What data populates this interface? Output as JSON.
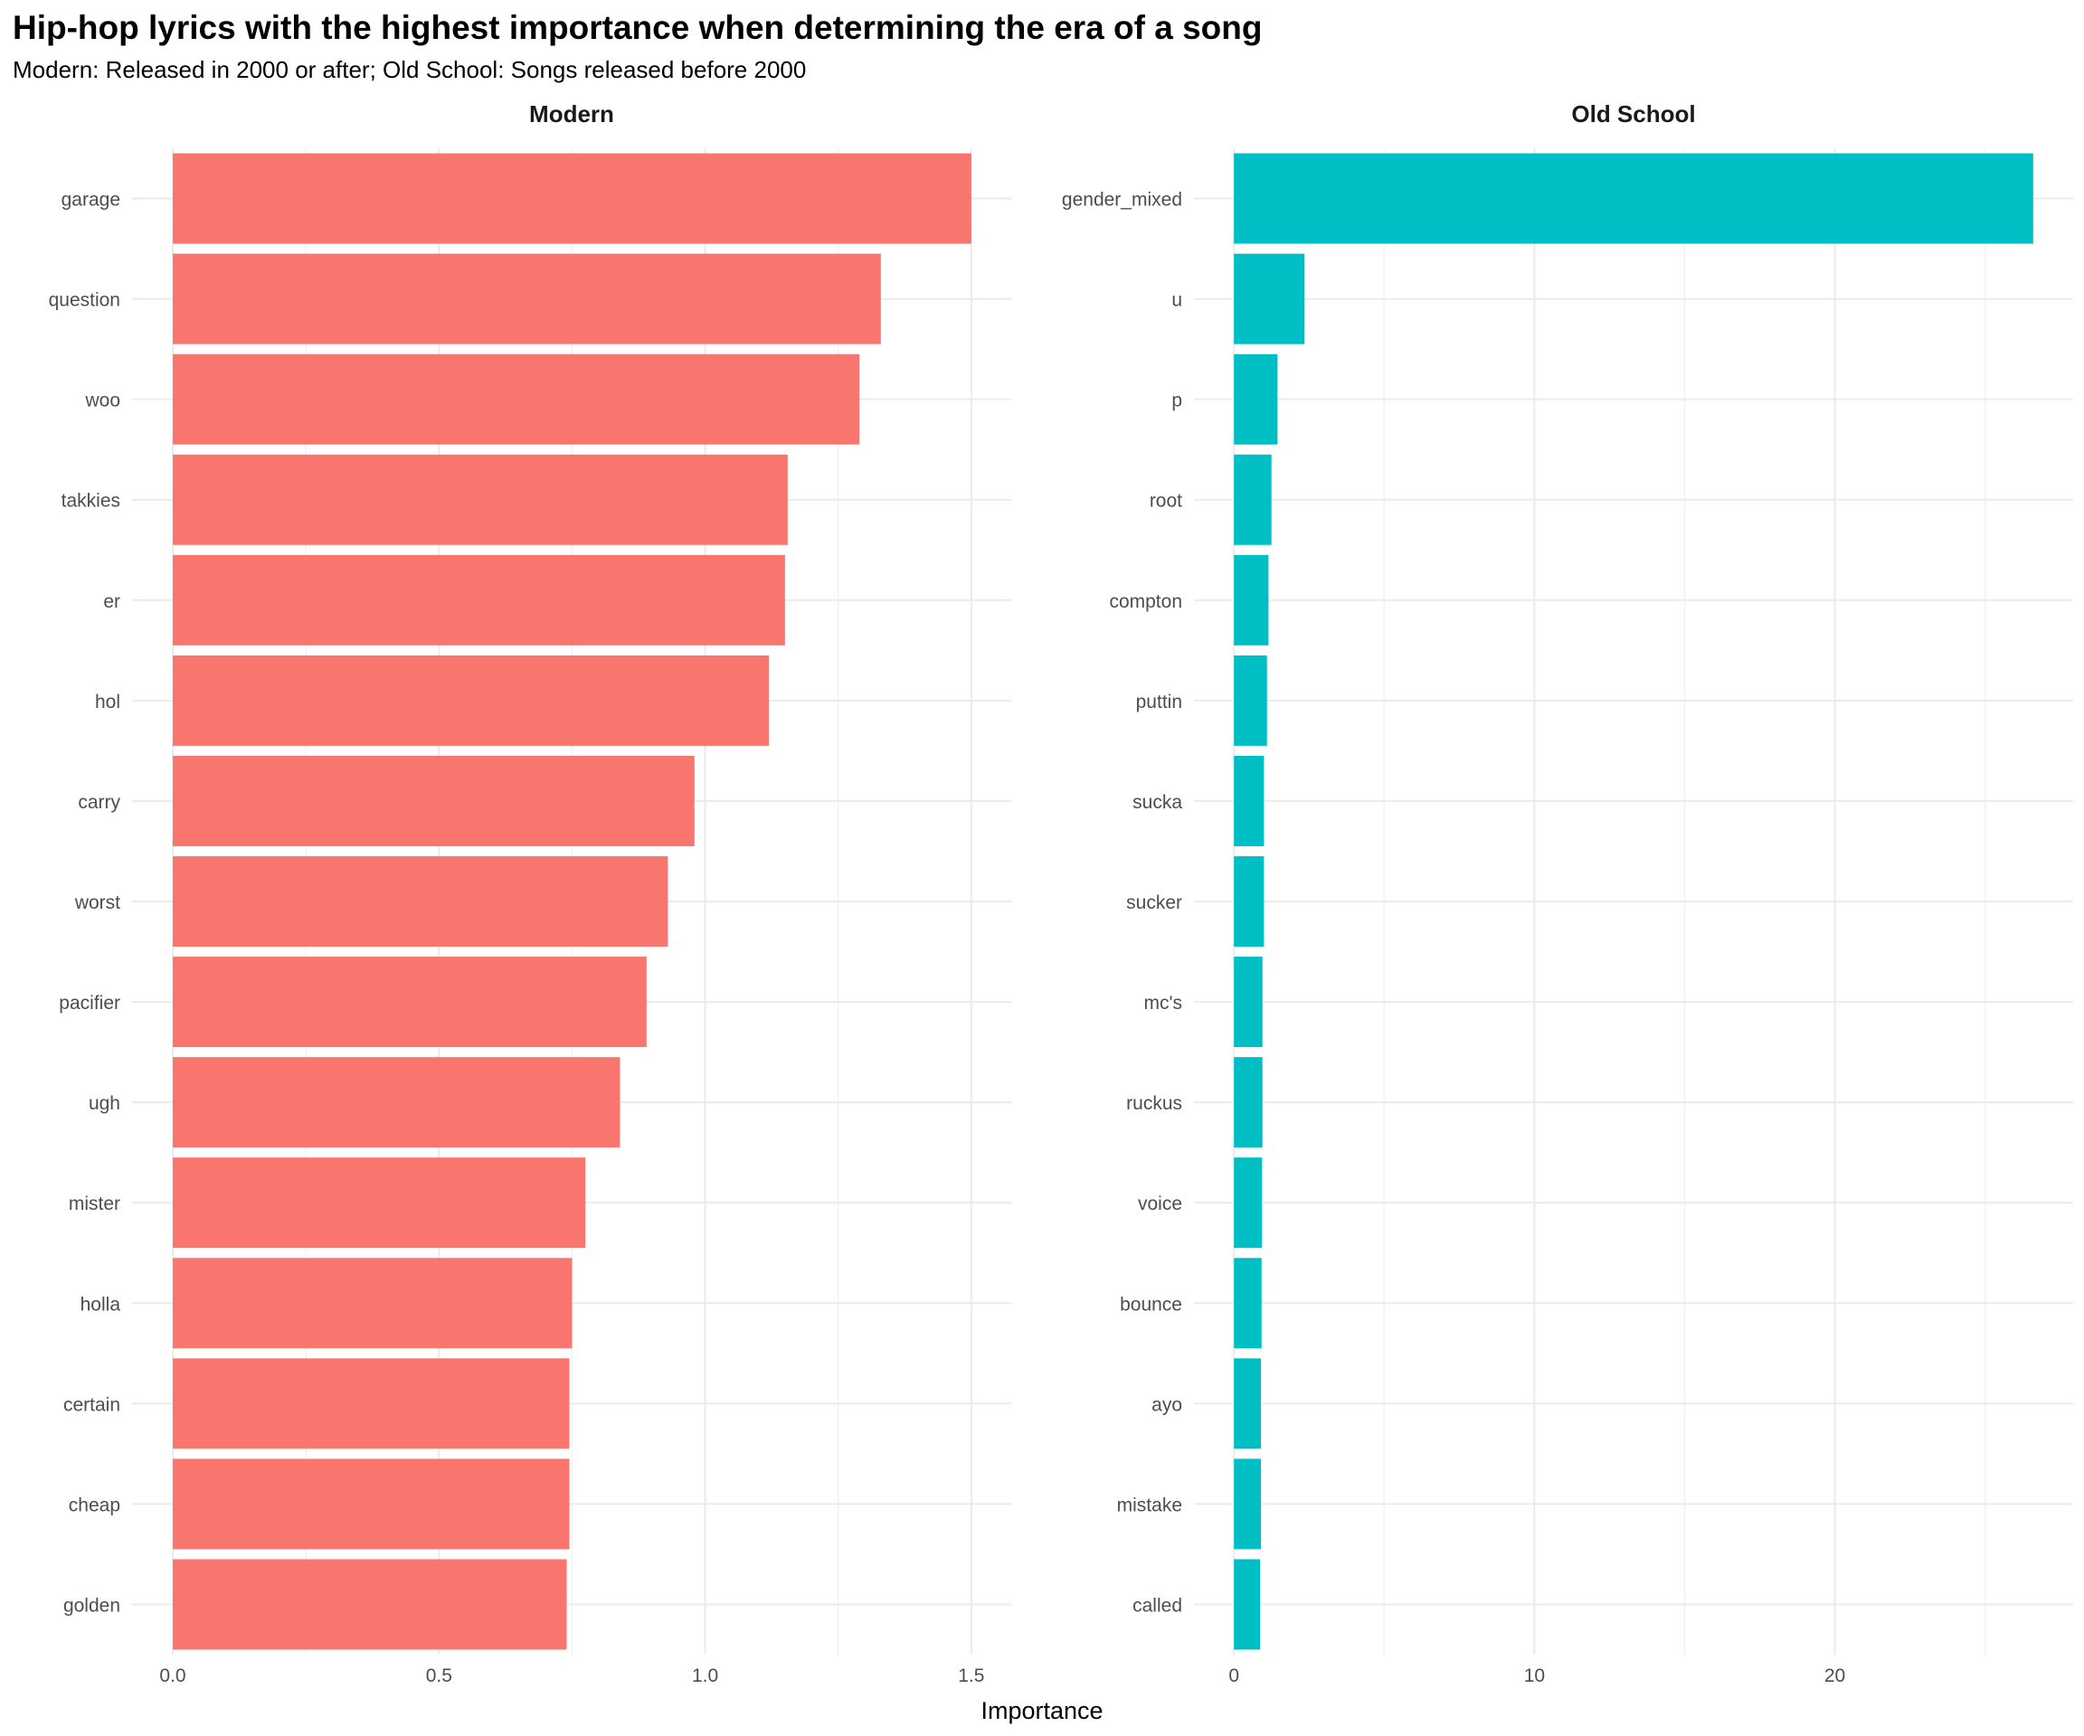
{
  "title": "Hip-hop lyrics with the highest importance when determining the era of a song",
  "subtitle": "Modern: Released in 2000 or after; Old School: Songs released before 2000",
  "chart_data": [
    {
      "type": "bar",
      "orientation": "horizontal",
      "facet": "Modern",
      "color": "#F8766D",
      "categories": [
        "garage",
        "question",
        "woo",
        "takkies",
        "er",
        "hol",
        "carry",
        "worst",
        "pacifier",
        "ugh",
        "mister",
        "holla",
        "certain",
        "cheap",
        "golden"
      ],
      "values": [
        1.5,
        1.33,
        1.29,
        1.155,
        1.15,
        1.12,
        0.98,
        0.93,
        0.89,
        0.84,
        0.775,
        0.75,
        0.745,
        0.745,
        0.74
      ],
      "xlim": [
        -0.0765,
        1.575
      ],
      "ticks": [
        0.0,
        0.5,
        1.0,
        1.5
      ],
      "tick_labels": [
        "0.0",
        "0.5",
        "1.0",
        "1.5"
      ],
      "minor_ticks": [
        0.25,
        0.75,
        1.25
      ],
      "xlabel": "Importance",
      "grid": true
    },
    {
      "type": "bar",
      "orientation": "horizontal",
      "facet": "Old School",
      "color": "#00BFC4",
      "categories": [
        "gender_mixed",
        "u",
        "p",
        "root",
        "compton",
        "puttin",
        "sucka",
        "sucker",
        "mc's",
        "ruckus",
        "voice",
        "bounce",
        "ayo",
        "mistake",
        "called"
      ],
      "values": [
        26.6,
        2.35,
        1.45,
        1.25,
        1.15,
        1.1,
        1.0,
        1.0,
        0.95,
        0.95,
        0.93,
        0.92,
        0.9,
        0.9,
        0.87
      ],
      "xlim": [
        -1.33,
        27.93
      ],
      "ticks": [
        0,
        10,
        20
      ],
      "tick_labels": [
        "0",
        "10",
        "20"
      ],
      "minor_ticks": [
        5,
        15,
        25
      ],
      "xlabel": "Importance",
      "grid": true
    }
  ]
}
